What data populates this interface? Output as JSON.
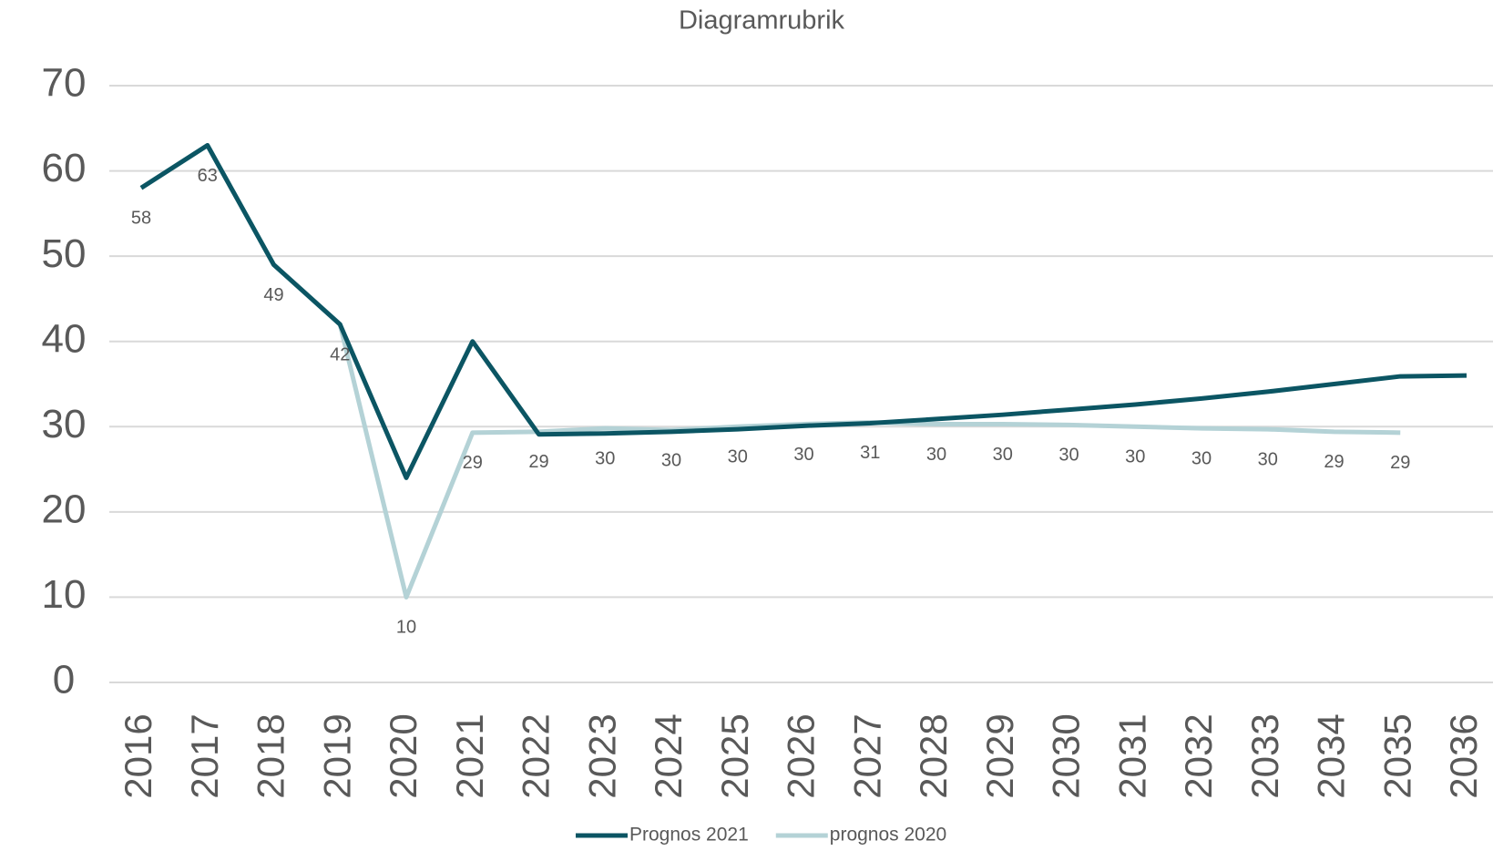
{
  "chart_data": {
    "type": "line",
    "title": "Diagramrubrik",
    "categories": [
      "2016",
      "2017",
      "2018",
      "2019",
      "2020",
      "2021",
      "2022",
      "2023",
      "2024",
      "2025",
      "2026",
      "2027",
      "2028",
      "2029",
      "2030",
      "2031",
      "2032",
      "2033",
      "2034",
      "2035",
      "2036"
    ],
    "series": [
      {
        "name": "Prognos 2021",
        "color": "#0b5563",
        "values": [
          58,
          63,
          49,
          42,
          24,
          40,
          29.1,
          29.2,
          29.4,
          29.7,
          30.1,
          30.4,
          30.9,
          31.4,
          32,
          32.6,
          33.3,
          34.1,
          35,
          35.9,
          36
        ]
      },
      {
        "name": "prognos 2020",
        "color": "#b4d2d6",
        "values": [
          58,
          63,
          49,
          42,
          10,
          29.3,
          29.4,
          29.8,
          29.6,
          30,
          30.3,
          30.5,
          30.3,
          30.3,
          30.2,
          30,
          29.8,
          29.7,
          29.4,
          29.3,
          null
        ],
        "value_labels": [
          "58",
          "63",
          "49",
          "42",
          "10",
          "29",
          "29",
          "30",
          "30",
          "30",
          "30",
          "31",
          "30",
          "30",
          "30",
          "30",
          "30",
          "30",
          "29",
          "29",
          null
        ]
      }
    ],
    "ylim": [
      0,
      70
    ],
    "yticks": [
      0,
      10,
      20,
      30,
      40,
      50,
      60,
      70
    ],
    "grid": true,
    "legend": "bottom"
  }
}
